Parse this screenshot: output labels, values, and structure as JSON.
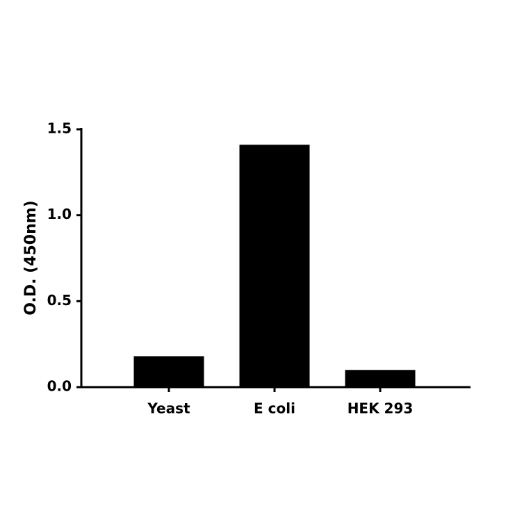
{
  "chart_data": {
    "type": "bar",
    "y_label": "O.D. (450nm)",
    "categories": [
      "Yeast",
      "E coli",
      "HEK 293"
    ],
    "values": [
      0.18,
      1.41,
      0.1
    ],
    "color": "#000000",
    "ylim": [
      0,
      1.5
    ],
    "yticks": [
      {
        "value": 0,
        "label": "0.0"
      },
      {
        "value": 0.5,
        "label": "0.5"
      },
      {
        "value": 1,
        "label": "1.0"
      },
      {
        "value": 1.5,
        "label": "1.5"
      }
    ],
    "grid": false
  }
}
